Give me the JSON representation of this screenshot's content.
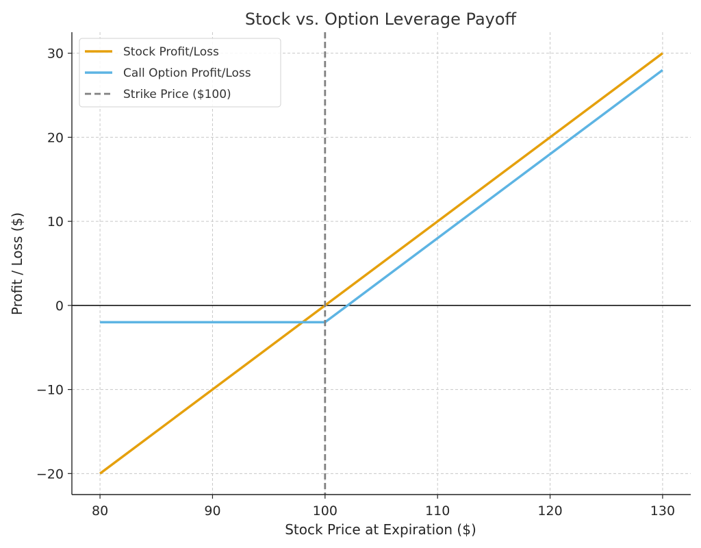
{
  "chart_data": {
    "type": "line",
    "title": "Stock vs. Option Leverage Payoff",
    "xlabel": "Stock Price at Expiration ($)",
    "ylabel": "Profit / Loss ($)",
    "xlim": [
      77.5,
      132.5
    ],
    "ylim": [
      -22.5,
      32.5
    ],
    "xticks": [
      80,
      90,
      100,
      110,
      120,
      130
    ],
    "yticks": [
      -20,
      -10,
      0,
      10,
      20,
      30
    ],
    "xtick_labels": [
      "80",
      "90",
      "100",
      "110",
      "120",
      "130"
    ],
    "ytick_labels": [
      "−20",
      "−10",
      "0",
      "10",
      "20",
      "30"
    ],
    "grid": true,
    "legend_position": "top-left",
    "zero_line": 0,
    "series": [
      {
        "name": "Stock Profit/Loss",
        "color": "#E5A00D",
        "style": "solid",
        "x": [
          80,
          130
        ],
        "y": [
          -20,
          30
        ]
      },
      {
        "name": "Call Option Profit/Loss",
        "color": "#5DB4E3",
        "style": "solid",
        "x": [
          80,
          100,
          130
        ],
        "y": [
          -2,
          -2,
          28
        ]
      },
      {
        "name": "Strike Price ($100)",
        "color": "#808080",
        "style": "dashed",
        "vertical_x": 100
      }
    ]
  }
}
